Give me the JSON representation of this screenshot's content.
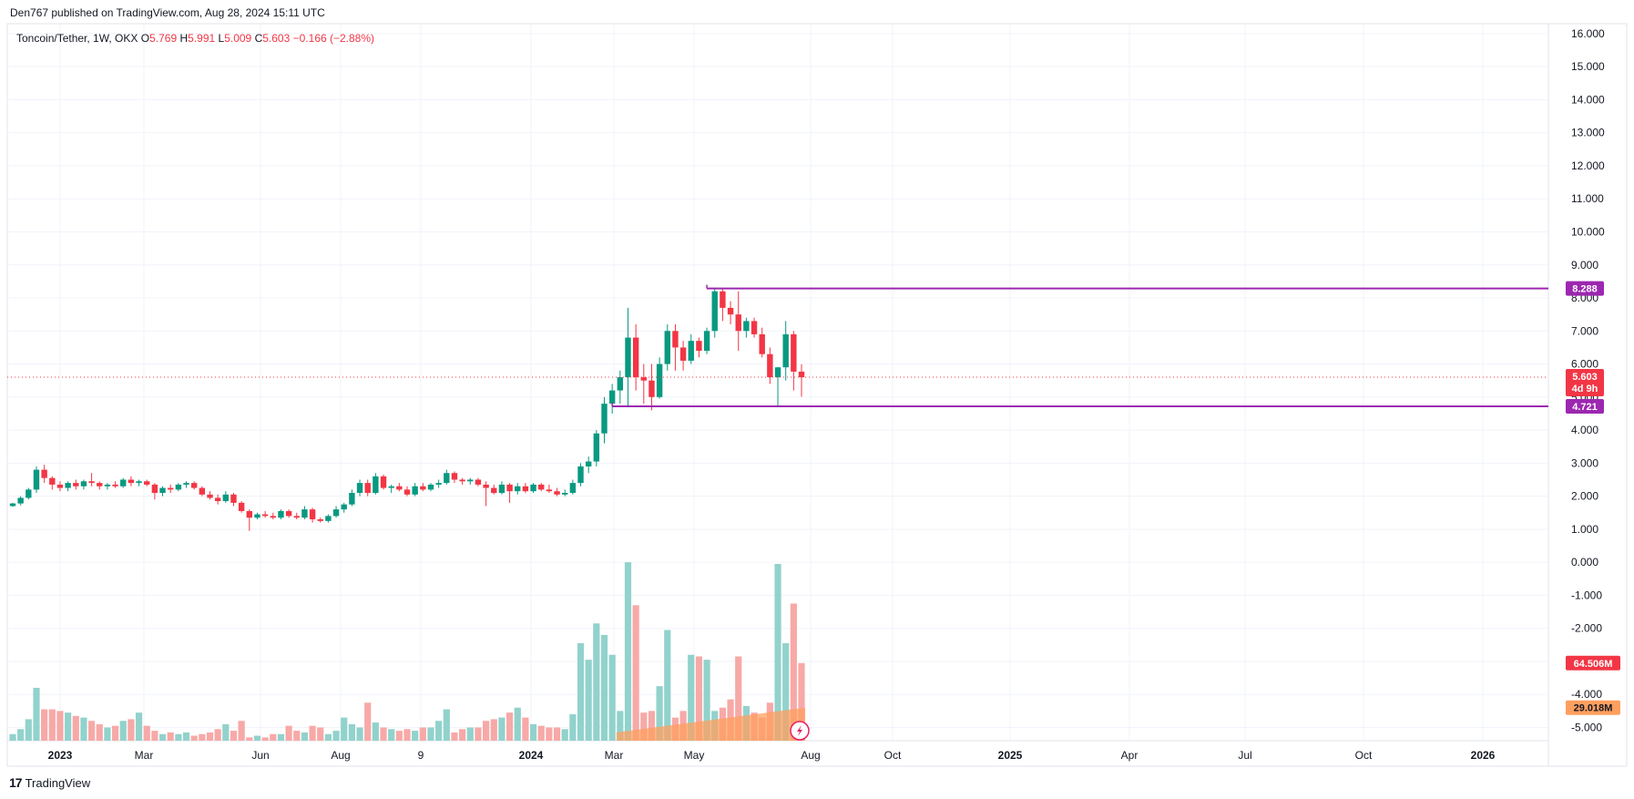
{
  "header": {
    "published_line": "Den767 published on TradingView.com, Aug 28, 2024 15:11 UTC"
  },
  "legend": {
    "symbol": "Toncoin/Tether, 1W, OKX",
    "o_label": "O",
    "o_value": "5.769",
    "h_label": "H",
    "h_value": "5.991",
    "l_label": "L",
    "l_value": "5.009",
    "c_label": "C",
    "c_value": "5.603",
    "change": "−0.166 (−2.88%)"
  },
  "footer": {
    "brand": "TradingView",
    "logo_text": "17"
  },
  "colors": {
    "up": "#089981",
    "down": "#f23645",
    "vol_up": "#92d2cc",
    "vol_down": "#f7a9a7",
    "level": "#9c27b0",
    "ma": "#ff9f5f"
  },
  "chart_data": {
    "type": "candlestick",
    "title": "Toncoin/Tether, 1W, OKX",
    "interval": "1W",
    "price_axis": {
      "ylim": [
        -5.4,
        16.3
      ],
      "ticks": [
        "16.000",
        "15.000",
        "14.000",
        "13.000",
        "12.000",
        "11.000",
        "10.000",
        "9.000",
        "8.000",
        "7.000",
        "6.000",
        "5.000",
        "4.000",
        "3.000",
        "2.000",
        "1.000",
        "0.000",
        "-1.000",
        "-2.000",
        "-3.000",
        "-4.000",
        "-5.000"
      ]
    },
    "x_labels": [
      "2023",
      "Mar",
      "Jun",
      "Aug",
      "9",
      "2024",
      "Mar",
      "May",
      "Aug",
      "Oct",
      "2025",
      "Apr",
      "Jul",
      "Oct",
      "2026"
    ],
    "x_label_bold": [
      "2023",
      "2024",
      "2025",
      "2026"
    ],
    "candles": [
      [
        1.7,
        1.8,
        1.68,
        1.78
      ],
      [
        1.78,
        2.0,
        1.72,
        1.95
      ],
      [
        1.95,
        2.25,
        1.9,
        2.2
      ],
      [
        2.2,
        2.9,
        2.1,
        2.8
      ],
      [
        2.8,
        2.95,
        2.4,
        2.55
      ],
      [
        2.55,
        2.6,
        2.2,
        2.35
      ],
      [
        2.35,
        2.45,
        2.15,
        2.25
      ],
      [
        2.25,
        2.45,
        2.15,
        2.4
      ],
      [
        2.4,
        2.5,
        2.2,
        2.3
      ],
      [
        2.3,
        2.5,
        2.2,
        2.45
      ],
      [
        2.45,
        2.7,
        2.3,
        2.4
      ],
      [
        2.4,
        2.45,
        2.2,
        2.3
      ],
      [
        2.3,
        2.4,
        2.2,
        2.35
      ],
      [
        2.35,
        2.45,
        2.25,
        2.3
      ],
      [
        2.3,
        2.55,
        2.25,
        2.5
      ],
      [
        2.5,
        2.6,
        2.3,
        2.4
      ],
      [
        2.4,
        2.5,
        2.3,
        2.45
      ],
      [
        2.45,
        2.5,
        2.3,
        2.35
      ],
      [
        2.35,
        2.4,
        1.9,
        2.1
      ],
      [
        2.1,
        2.3,
        2.0,
        2.25
      ],
      [
        2.25,
        2.35,
        2.1,
        2.2
      ],
      [
        2.2,
        2.4,
        2.15,
        2.35
      ],
      [
        2.35,
        2.45,
        2.25,
        2.4
      ],
      [
        2.4,
        2.45,
        2.2,
        2.25
      ],
      [
        2.25,
        2.3,
        2.0,
        2.05
      ],
      [
        2.05,
        2.15,
        1.9,
        1.95
      ],
      [
        1.95,
        2.05,
        1.75,
        1.85
      ],
      [
        1.85,
        2.15,
        1.8,
        2.05
      ],
      [
        2.05,
        2.1,
        1.7,
        1.8
      ],
      [
        1.8,
        1.85,
        1.5,
        1.55
      ],
      [
        1.55,
        1.6,
        0.95,
        1.35
      ],
      [
        1.35,
        1.5,
        1.3,
        1.45
      ],
      [
        1.45,
        1.55,
        1.35,
        1.4
      ],
      [
        1.4,
        1.5,
        1.3,
        1.35
      ],
      [
        1.35,
        1.6,
        1.3,
        1.55
      ],
      [
        1.55,
        1.6,
        1.35,
        1.4
      ],
      [
        1.4,
        1.5,
        1.3,
        1.35
      ],
      [
        1.35,
        1.7,
        1.3,
        1.6
      ],
      [
        1.6,
        1.65,
        1.2,
        1.3
      ],
      [
        1.3,
        1.35,
        1.2,
        1.25
      ],
      [
        1.25,
        1.45,
        1.2,
        1.4
      ],
      [
        1.4,
        1.7,
        1.35,
        1.6
      ],
      [
        1.6,
        1.8,
        1.5,
        1.75
      ],
      [
        1.75,
        2.2,
        1.7,
        2.1
      ],
      [
        2.1,
        2.5,
        2.0,
        2.4
      ],
      [
        2.4,
        2.5,
        2.0,
        2.1
      ],
      [
        2.1,
        2.7,
        2.05,
        2.6
      ],
      [
        2.6,
        2.65,
        2.2,
        2.25
      ],
      [
        2.25,
        2.35,
        2.1,
        2.3
      ],
      [
        2.3,
        2.4,
        2.15,
        2.2
      ],
      [
        2.2,
        2.3,
        2.0,
        2.05
      ],
      [
        2.05,
        2.4,
        2.0,
        2.3
      ],
      [
        2.3,
        2.4,
        2.15,
        2.2
      ],
      [
        2.2,
        2.4,
        2.15,
        2.35
      ],
      [
        2.35,
        2.5,
        2.25,
        2.4
      ],
      [
        2.4,
        2.8,
        2.35,
        2.7
      ],
      [
        2.7,
        2.75,
        2.4,
        2.5
      ],
      [
        2.5,
        2.55,
        2.35,
        2.45
      ],
      [
        2.45,
        2.55,
        2.35,
        2.5
      ],
      [
        2.5,
        2.55,
        2.3,
        2.35
      ],
      [
        2.35,
        2.45,
        1.7,
        2.25
      ],
      [
        2.25,
        2.35,
        2.05,
        2.1
      ],
      [
        2.1,
        2.45,
        2.05,
        2.35
      ],
      [
        2.35,
        2.4,
        1.8,
        2.15
      ],
      [
        2.15,
        2.4,
        2.05,
        2.3
      ],
      [
        2.3,
        2.4,
        2.1,
        2.15
      ],
      [
        2.15,
        2.4,
        2.1,
        2.35
      ],
      [
        2.35,
        2.4,
        2.15,
        2.2
      ],
      [
        2.2,
        2.35,
        2.1,
        2.15
      ],
      [
        2.15,
        2.25,
        2.0,
        2.05
      ],
      [
        2.05,
        2.2,
        2.0,
        2.1
      ],
      [
        2.1,
        2.5,
        2.05,
        2.4
      ],
      [
        2.4,
        3.0,
        2.3,
        2.9
      ],
      [
        2.9,
        3.2,
        2.7,
        3.05
      ],
      [
        3.05,
        4.0,
        2.9,
        3.9
      ],
      [
        3.9,
        5.0,
        3.6,
        4.8
      ],
      [
        4.8,
        5.4,
        4.5,
        5.2
      ],
      [
        5.2,
        5.8,
        4.8,
        5.6
      ],
      [
        5.6,
        7.7,
        4.7,
        6.8
      ],
      [
        6.8,
        7.2,
        5.2,
        5.6
      ],
      [
        5.6,
        6.0,
        4.8,
        5.5
      ],
      [
        5.5,
        6.0,
        4.6,
        5.0
      ],
      [
        5.0,
        6.2,
        4.95,
        6.0
      ],
      [
        6.0,
        7.2,
        5.8,
        7.0
      ],
      [
        7.0,
        7.2,
        5.8,
        6.5
      ],
      [
        6.5,
        6.7,
        5.8,
        6.1
      ],
      [
        6.1,
        6.9,
        6.0,
        6.7
      ],
      [
        6.7,
        6.8,
        6.2,
        6.4
      ],
      [
        6.4,
        7.1,
        6.3,
        7.0
      ],
      [
        7.0,
        8.3,
        6.8,
        8.2
      ],
      [
        8.2,
        8.3,
        7.3,
        7.7
      ],
      [
        7.7,
        7.9,
        7.2,
        7.5
      ],
      [
        7.5,
        8.2,
        6.4,
        7.0
      ],
      [
        7.0,
        7.4,
        6.8,
        7.3
      ],
      [
        7.3,
        7.4,
        6.8,
        6.9
      ],
      [
        6.9,
        7.1,
        6.2,
        6.3
      ],
      [
        6.3,
        6.5,
        5.4,
        5.6
      ],
      [
        5.6,
        5.9,
        4.72,
        5.9
      ],
      [
        5.9,
        7.3,
        5.5,
        6.9
      ],
      [
        6.9,
        7.0,
        5.2,
        5.77
      ],
      [
        5.77,
        5.99,
        5.01,
        5.6
      ]
    ],
    "volume_axis_min": -5.4,
    "volume_axis_max": 0.15,
    "volumes": [
      0.2,
      0.35,
      0.65,
      1.6,
      0.95,
      0.95,
      0.9,
      0.85,
      0.75,
      0.7,
      0.6,
      0.5,
      0.4,
      0.45,
      0.6,
      0.65,
      0.85,
      0.45,
      0.3,
      0.2,
      0.25,
      0.2,
      0.25,
      0.15,
      0.2,
      0.25,
      0.35,
      0.5,
      0.3,
      0.6,
      0.1,
      0.15,
      0.1,
      0.2,
      0.2,
      0.45,
      0.3,
      0.25,
      0.45,
      0.4,
      0.2,
      0.3,
      0.7,
      0.5,
      0.4,
      1.15,
      0.55,
      0.4,
      0.35,
      0.3,
      0.35,
      0.3,
      0.4,
      0.4,
      0.6,
      0.95,
      0.25,
      0.35,
      0.4,
      0.4,
      0.6,
      0.65,
      0.7,
      0.85,
      1.0,
      0.7,
      0.5,
      0.45,
      0.4,
      0.4,
      0.35,
      0.8,
      2.95,
      2.45,
      3.55,
      3.2,
      2.6,
      0.9,
      5.4,
      4.1,
      0.85,
      0.9,
      1.65,
      3.35,
      0.7,
      0.9,
      2.6,
      2.55,
      2.45,
      0.9,
      1.0,
      1.25,
      2.55,
      1.05,
      0.85,
      0.7,
      1.15,
      5.35,
      2.95,
      4.15,
      2.35
    ],
    "volume_ma": {
      "start_index": 77,
      "start": 0.25,
      "end": 1.0
    },
    "levels": [
      {
        "value": 8.288,
        "label": "8.288",
        "start_index": 88
      },
      {
        "value": 4.721,
        "label": "4.721",
        "start_index": 76
      }
    ],
    "last_price": {
      "value": 5.603,
      "label": "5.603",
      "countdown": "4d 9h"
    },
    "volume_labels": {
      "volume": "64.506M",
      "ma": "29.018M"
    }
  }
}
